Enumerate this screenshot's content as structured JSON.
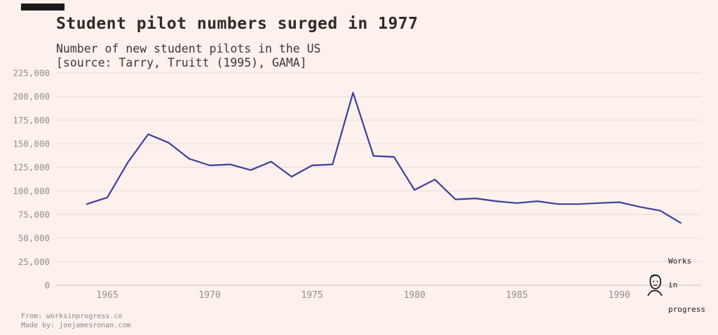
{
  "page": {
    "background_color": "#fcf1ec",
    "accent_bar_color": "#1a1a1a",
    "grid_color": "#e7dbd6"
  },
  "header": {
    "title": "Student pilot numbers surged in 1977",
    "subtitle_line1": "Number of new student pilots in the US",
    "subtitle_line2": "[source: Tarry, Truitt (1995), GAMA]"
  },
  "footer": {
    "from": "From: worksinprogress.co",
    "made_by": "Made by: joejamesronan.com",
    "logo_lines": [
      "Works",
      "in",
      "progress"
    ]
  },
  "chart_data": {
    "type": "line",
    "title": "Student pilot numbers surged in 1977",
    "subtitle": "Number of new student pilots in the US [source: Tarry, Truitt (1995), GAMA]",
    "xlabel": "",
    "ylabel": "",
    "line_color": "#3c3f9d",
    "grid": true,
    "legend": "none",
    "xlim": [
      1962.5,
      1994
    ],
    "ylim": [
      0,
      225000
    ],
    "xticks": [
      1965,
      1970,
      1975,
      1980,
      1985,
      1990
    ],
    "yticks": [
      0,
      25000,
      50000,
      75000,
      100000,
      125000,
      150000,
      175000,
      200000,
      225000
    ],
    "x": [
      1964,
      1965,
      1966,
      1967,
      1968,
      1969,
      1970,
      1971,
      1972,
      1973,
      1974,
      1975,
      1976,
      1977,
      1978,
      1979,
      1980,
      1981,
      1982,
      1983,
      1984,
      1985,
      1986,
      1987,
      1988,
      1989,
      1990,
      1991,
      1992,
      1993
    ],
    "values": [
      86000,
      93000,
      130000,
      160000,
      151000,
      134000,
      127000,
      128000,
      122000,
      131000,
      115000,
      127000,
      128000,
      204000,
      137000,
      136000,
      101000,
      112000,
      91000,
      92000,
      89000,
      87000,
      89000,
      86000,
      86000,
      87000,
      88000,
      83000,
      79000,
      66000
    ]
  }
}
